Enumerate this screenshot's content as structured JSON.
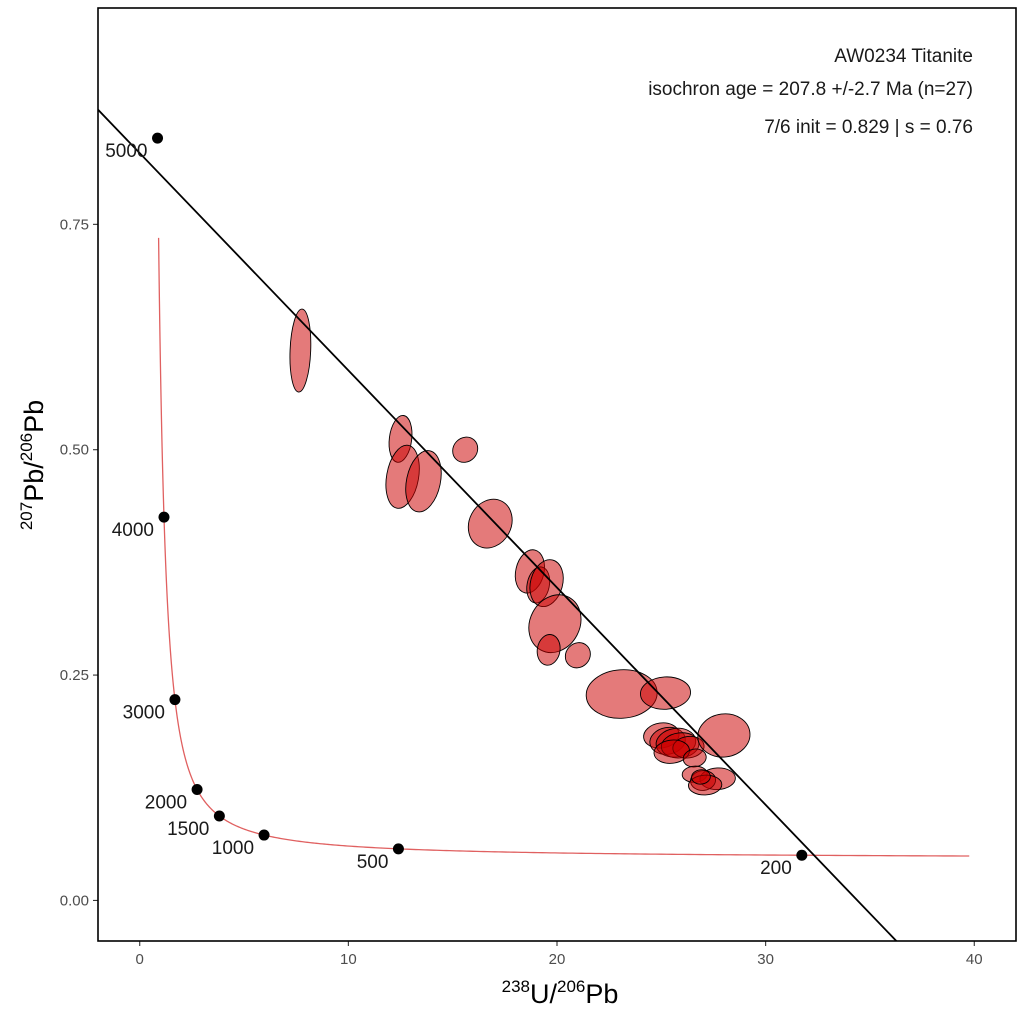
{
  "chart_data": {
    "type": "scatter",
    "title": "AW0234 Titanite",
    "annotations": [
      "AW0234 Titanite",
      "isochron age = 207.8 +/-2.7 Ma (n=27)",
      "7/6 init = 0.829 | s = 0.76"
    ],
    "xlabel": {
      "sup": "238",
      "base": "U/",
      "sup2": "206",
      "base2": "Pb"
    },
    "ylabel": {
      "sup": "207",
      "base": "Pb/",
      "sup2": "206",
      "base2": "Pb"
    },
    "xlim": [
      -2,
      42
    ],
    "ylim": [
      -0.045,
      0.99
    ],
    "xticks": [
      0,
      10,
      20,
      30,
      40
    ],
    "xtick_labels": [
      "0",
      "10",
      "20",
      "30",
      "40"
    ],
    "yticks": [
      0.0,
      0.25,
      0.5,
      0.75
    ],
    "ytick_labels": [
      "0.00",
      "0.25",
      "0.50",
      "0.75"
    ],
    "regression_line": {
      "intercept": 0.829,
      "slope": -0.0241
    },
    "concordia_ages_ma": [
      0.5,
      1,
      2,
      5,
      10,
      20,
      35,
      60,
      100,
      150,
      200,
      300,
      400,
      500,
      700,
      1000,
      1250,
      1500,
      1750,
      2000,
      2500,
      3000,
      3500,
      4000,
      4500,
      5000
    ],
    "concordia_marker_ages": [
      200,
      500,
      1000,
      1500,
      2000,
      3000,
      4000,
      5000
    ],
    "concordia_marker_labels": [
      "200",
      "500",
      "1000",
      "1500",
      "2000",
      "3000",
      "4000",
      "5000"
    ],
    "colors": {
      "ellipse_fill": "#cc0000",
      "ellipse_edge": "#000000",
      "concordia": "#e06060",
      "regression": "#000000",
      "marker": "#000000"
    },
    "ellipses": [
      {
        "x": 7.7,
        "y": 0.61,
        "sx": 0.5,
        "sy": 0.046,
        "rho": 0.15
      },
      {
        "x": 12.5,
        "y": 0.512,
        "sx": 0.55,
        "sy": 0.026,
        "rho": 0.2
      },
      {
        "x": 12.6,
        "y": 0.47,
        "sx": 0.8,
        "sy": 0.035,
        "rho": 0.25
      },
      {
        "x": 13.6,
        "y": 0.465,
        "sx": 0.85,
        "sy": 0.034,
        "rho": 0.25
      },
      {
        "x": 15.6,
        "y": 0.5,
        "sx": 0.6,
        "sy": 0.014,
        "rho": 0.1
      },
      {
        "x": 16.8,
        "y": 0.418,
        "sx": 1.05,
        "sy": 0.027,
        "rho": 0.15
      },
      {
        "x": 18.7,
        "y": 0.365,
        "sx": 0.7,
        "sy": 0.024,
        "rho": 0.2
      },
      {
        "x": 19.1,
        "y": 0.35,
        "sx": 0.55,
        "sy": 0.02,
        "rho": 0.2
      },
      {
        "x": 19.5,
        "y": 0.352,
        "sx": 0.8,
        "sy": 0.026,
        "rho": 0.2
      },
      {
        "x": 19.9,
        "y": 0.307,
        "sx": 1.25,
        "sy": 0.032,
        "rho": 0.15
      },
      {
        "x": 19.6,
        "y": 0.278,
        "sx": 0.55,
        "sy": 0.017,
        "rho": 0.1
      },
      {
        "x": 21.0,
        "y": 0.272,
        "sx": 0.6,
        "sy": 0.014,
        "rho": 0.1
      },
      {
        "x": 23.1,
        "y": 0.229,
        "sx": 1.7,
        "sy": 0.027,
        "rho": 0.05
      },
      {
        "x": 25.2,
        "y": 0.23,
        "sx": 1.2,
        "sy": 0.018,
        "rho": 0.05
      },
      {
        "x": 25.0,
        "y": 0.183,
        "sx": 0.85,
        "sy": 0.014,
        "rho": 0.1
      },
      {
        "x": 25.3,
        "y": 0.177,
        "sx": 0.85,
        "sy": 0.015,
        "rho": 0.1
      },
      {
        "x": 25.7,
        "y": 0.175,
        "sx": 0.95,
        "sy": 0.016,
        "rho": 0.1
      },
      {
        "x": 25.9,
        "y": 0.172,
        "sx": 0.9,
        "sy": 0.014,
        "rho": 0.1
      },
      {
        "x": 26.3,
        "y": 0.17,
        "sx": 0.75,
        "sy": 0.012,
        "rho": 0.1
      },
      {
        "x": 25.5,
        "y": 0.165,
        "sx": 0.85,
        "sy": 0.013,
        "rho": 0.1
      },
      {
        "x": 26.6,
        "y": 0.158,
        "sx": 0.55,
        "sy": 0.01,
        "rho": 0.1
      },
      {
        "x": 28.0,
        "y": 0.183,
        "sx": 1.25,
        "sy": 0.024,
        "rho": 0.05
      },
      {
        "x": 26.6,
        "y": 0.14,
        "sx": 0.6,
        "sy": 0.009,
        "rho": 0.05
      },
      {
        "x": 27.7,
        "y": 0.135,
        "sx": 0.85,
        "sy": 0.012,
        "rho": 0.05
      },
      {
        "x": 27.0,
        "y": 0.133,
        "sx": 0.6,
        "sy": 0.011,
        "rho": 0.05
      },
      {
        "x": 27.1,
        "y": 0.128,
        "sx": 0.8,
        "sy": 0.011,
        "rho": 0.05
      },
      {
        "x": 26.9,
        "y": 0.137,
        "sx": 0.45,
        "sy": 0.008,
        "rho": 0.05
      }
    ]
  }
}
